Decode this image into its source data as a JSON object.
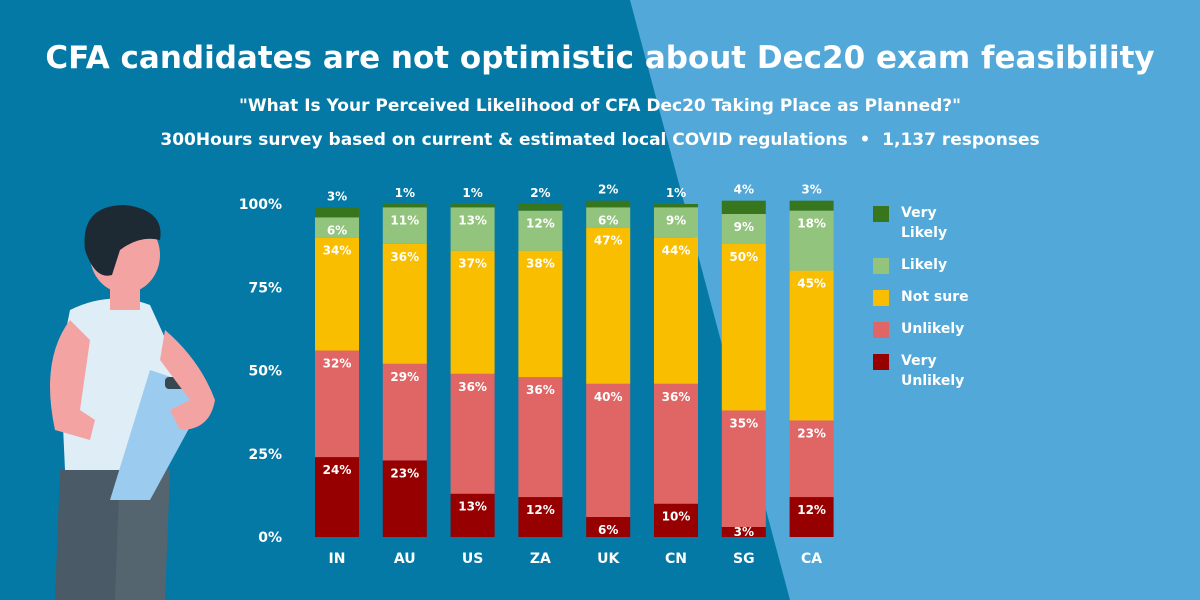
{
  "header": {
    "title": "CFA candidates are not optimistic about Dec20 exam feasibility",
    "subtitle": "\"What Is Your Perceived Likelihood of CFA Dec20 Taking Place as Planned?\"",
    "source_line": "300Hours survey based on current & estimated local COVID regulations  •  1,137 responses"
  },
  "colors": {
    "background_dark": "#0479a6",
    "background_light": "#52a8d8"
  },
  "chart_data": {
    "type": "bar",
    "stacked": true,
    "categories": [
      "IN",
      "AU",
      "US",
      "ZA",
      "UK",
      "CN",
      "SG",
      "CA"
    ],
    "yticks": [
      "0%",
      "25%",
      "50%",
      "75%",
      "100%"
    ],
    "ylim": [
      0,
      100
    ],
    "legend_position": "right",
    "series": [
      {
        "name": "Very Unlikely",
        "color": "#960000",
        "values": [
          24,
          23,
          13,
          12,
          6,
          10,
          3,
          12
        ]
      },
      {
        "name": "Unlikely",
        "color": "#e06666",
        "values": [
          32,
          29,
          36,
          36,
          40,
          36,
          35,
          23
        ]
      },
      {
        "name": "Not sure",
        "color": "#fabe00",
        "values": [
          34,
          36,
          37,
          38,
          47,
          44,
          50,
          45
        ]
      },
      {
        "name": "Likely",
        "color": "#93c47d",
        "values": [
          6,
          11,
          13,
          12,
          6,
          9,
          9,
          18
        ]
      },
      {
        "name": "Very Likely",
        "color": "#38761d",
        "values": [
          3,
          1,
          1,
          2,
          2,
          1,
          4,
          3
        ]
      }
    ]
  }
}
